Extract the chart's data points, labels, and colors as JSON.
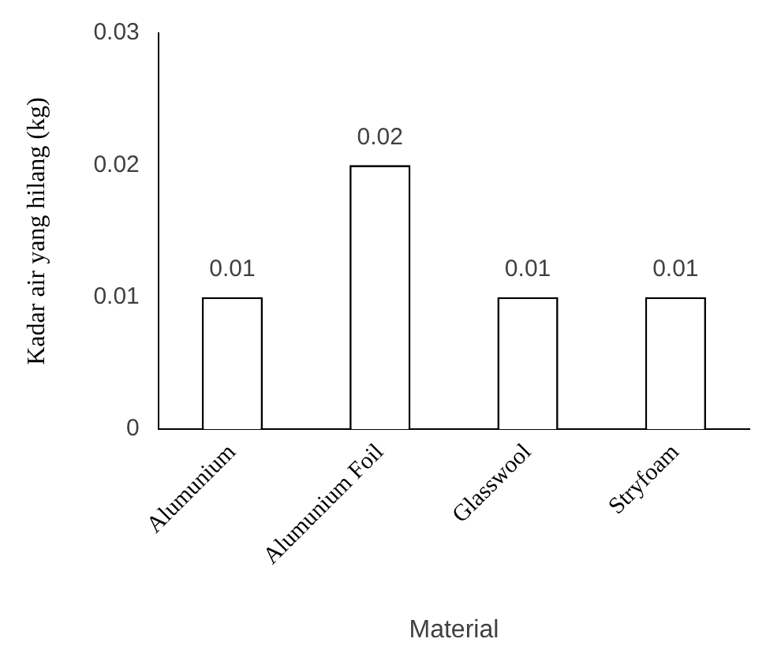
{
  "chart_data": {
    "type": "bar",
    "xlabel": "Material",
    "ylabel": "Kadar air yang hilang (kg)",
    "categories": [
      "Alumunium",
      "Alumunium Foil",
      "Glasswool",
      "Stryfoam"
    ],
    "values": [
      0.01,
      0.02,
      0.01,
      0.01
    ],
    "color": "#ffffff",
    "ylim": [
      0,
      0.03
    ],
    "yticks": [
      0,
      0.01,
      0.02,
      0.03
    ],
    "grid": false,
    "legend": false,
    "data_labels": true
  }
}
